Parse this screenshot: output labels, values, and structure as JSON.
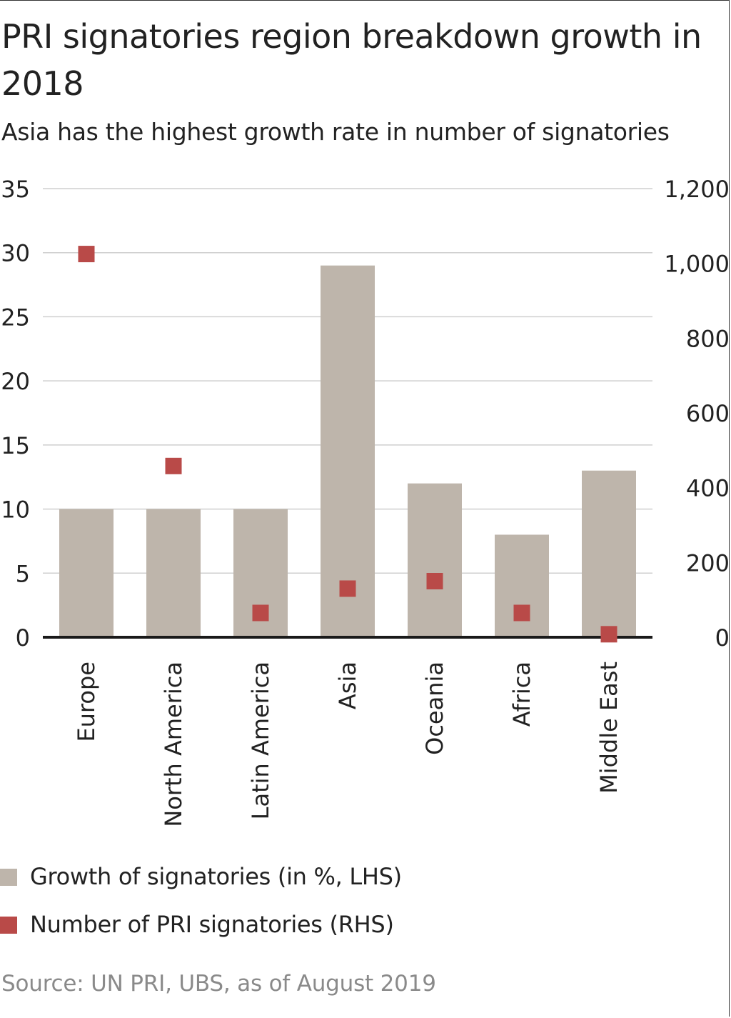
{
  "title": "PRI signatories region breakdown growth in 2018",
  "subtitle": "Asia has the highest growth rate in number of signatories",
  "source": "Source: UN PRI, UBS, as of August 2019",
  "colors": {
    "bar": "#beb5ab",
    "marker": "#b94a48",
    "grid": "#cfcfcf",
    "axis": "#1a1a1a",
    "text": "#222222"
  },
  "chart_data": {
    "type": "bar",
    "categories": [
      "Europe",
      "North America",
      "Latin America",
      "Asia",
      "Oceania",
      "Africa",
      "Middle East"
    ],
    "series": [
      {
        "name": "Growth of signatories (in %, LHS)",
        "type": "bar",
        "axis": "left",
        "values": [
          10,
          10,
          10,
          29,
          12,
          8,
          13
        ]
      },
      {
        "name": "Number of PRI signatories (RHS)",
        "type": "scatter",
        "axis": "right",
        "values": [
          1025,
          458,
          65,
          130,
          150,
          65,
          8
        ]
      }
    ],
    "ylim_left": [
      0,
      35
    ],
    "ylim_right": [
      0,
      1200
    ],
    "yticks_left": [
      "0",
      "5",
      "10",
      "15",
      "20",
      "25",
      "30",
      "35"
    ],
    "yticks_right": [
      "0",
      "200",
      "400",
      "600",
      "800",
      "1,000",
      "1,200"
    ],
    "grid": true,
    "legend_position": "bottom"
  }
}
